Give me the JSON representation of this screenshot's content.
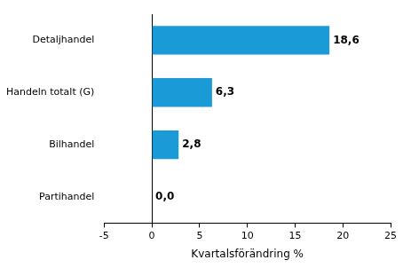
{
  "chart_data": {
    "type": "bar",
    "orientation": "horizontal",
    "categories": [
      "Detaljhandel",
      "Handeln totalt (G)",
      "Bilhandel",
      "Partihandel"
    ],
    "values": [
      18.6,
      6.3,
      2.8,
      0.0
    ],
    "value_labels": [
      "18,6",
      "6,3",
      "2,8",
      "0,0"
    ],
    "color": "#1a9bd7",
    "x_label": "Kvartalsförändring %",
    "xlim": [
      -5,
      25
    ],
    "xticks": [
      -5,
      0,
      5,
      10,
      15,
      20,
      25
    ],
    "grid": false,
    "data_labels": true
  }
}
